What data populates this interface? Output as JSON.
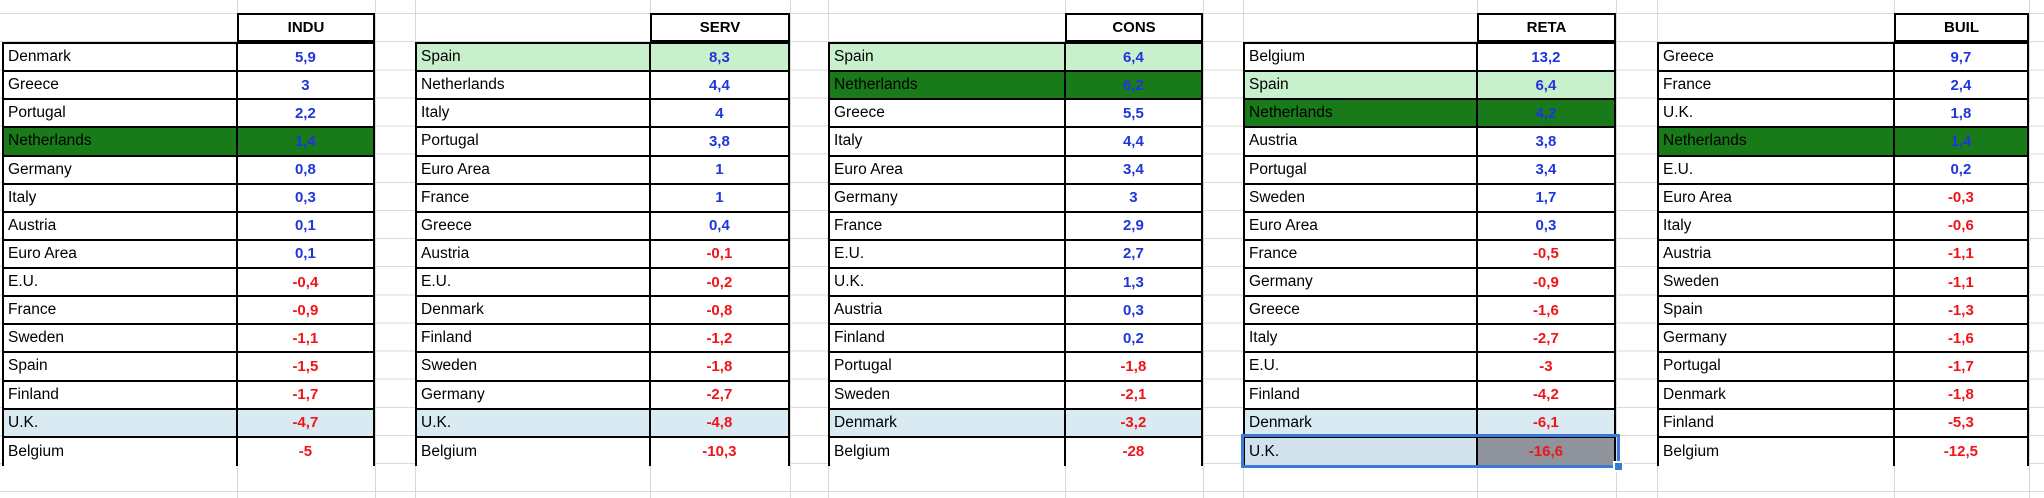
{
  "sheet": {
    "tables": [
      {
        "header": "INDU",
        "rows": [
          {
            "label": "Denmark",
            "value": "5,9",
            "highlight": "none"
          },
          {
            "label": "Greece",
            "value": "3",
            "highlight": "none"
          },
          {
            "label": "Portugal",
            "value": "2,2",
            "highlight": "none"
          },
          {
            "label": "Netherlands",
            "value": "1,4",
            "highlight": "dark-green"
          },
          {
            "label": "Germany",
            "value": "0,8",
            "highlight": "none"
          },
          {
            "label": "Italy",
            "value": "0,3",
            "highlight": "none"
          },
          {
            "label": "Austria",
            "value": "0,1",
            "highlight": "none"
          },
          {
            "label": "Euro Area",
            "value": "0,1",
            "highlight": "none"
          },
          {
            "label": "E.U.",
            "value": "-0,4",
            "highlight": "none"
          },
          {
            "label": "France",
            "value": "-0,9",
            "highlight": "none"
          },
          {
            "label": "Sweden",
            "value": "-1,1",
            "highlight": "none"
          },
          {
            "label": "Spain",
            "value": "-1,5",
            "highlight": "none"
          },
          {
            "label": "Finland",
            "value": "-1,7",
            "highlight": "none"
          },
          {
            "label": "U.K.",
            "value": "-4,7",
            "highlight": "light-blue"
          },
          {
            "label": "Belgium",
            "value": "-5",
            "highlight": "none"
          }
        ]
      },
      {
        "header": "SERV",
        "rows": [
          {
            "label": "Spain",
            "value": "8,3",
            "highlight": "light-green"
          },
          {
            "label": "Netherlands",
            "value": "4,4",
            "highlight": "none"
          },
          {
            "label": "Italy",
            "value": "4",
            "highlight": "none"
          },
          {
            "label": "Portugal",
            "value": "3,8",
            "highlight": "none"
          },
          {
            "label": "Euro Area",
            "value": "1",
            "highlight": "none"
          },
          {
            "label": "France",
            "value": "1",
            "highlight": "none"
          },
          {
            "label": "Greece",
            "value": "0,4",
            "highlight": "none"
          },
          {
            "label": "Austria",
            "value": "-0,1",
            "highlight": "none"
          },
          {
            "label": "E.U.",
            "value": "-0,2",
            "highlight": "none"
          },
          {
            "label": "Denmark",
            "value": "-0,8",
            "highlight": "none"
          },
          {
            "label": "Finland",
            "value": "-1,2",
            "highlight": "none"
          },
          {
            "label": "Sweden",
            "value": "-1,8",
            "highlight": "none"
          },
          {
            "label": "Germany",
            "value": "-2,7",
            "highlight": "none"
          },
          {
            "label": "U.K.",
            "value": "-4,8",
            "highlight": "light-blue"
          },
          {
            "label": "Belgium",
            "value": "-10,3",
            "highlight": "none"
          }
        ]
      },
      {
        "header": "CONS",
        "rows": [
          {
            "label": "Spain",
            "value": "6,4",
            "highlight": "light-green"
          },
          {
            "label": "Netherlands",
            "value": "6,2",
            "highlight": "dark-green"
          },
          {
            "label": "Greece",
            "value": "5,5",
            "highlight": "none"
          },
          {
            "label": "Italy",
            "value": "4,4",
            "highlight": "none"
          },
          {
            "label": "Euro Area",
            "value": "3,4",
            "highlight": "none"
          },
          {
            "label": "Germany",
            "value": "3",
            "highlight": "none"
          },
          {
            "label": "France",
            "value": "2,9",
            "highlight": "none"
          },
          {
            "label": "E.U.",
            "value": "2,7",
            "highlight": "none"
          },
          {
            "label": "U.K.",
            "value": "1,3",
            "highlight": "none"
          },
          {
            "label": "Austria",
            "value": "0,3",
            "highlight": "none"
          },
          {
            "label": "Finland",
            "value": "0,2",
            "highlight": "none"
          },
          {
            "label": "Portugal",
            "value": "-1,8",
            "highlight": "none"
          },
          {
            "label": "Sweden",
            "value": "-2,1",
            "highlight": "none"
          },
          {
            "label": "Denmark",
            "value": "-3,2",
            "highlight": "light-blue"
          },
          {
            "label": "Belgium",
            "value": "-28",
            "highlight": "none"
          }
        ]
      },
      {
        "header": "RETA",
        "rows": [
          {
            "label": "Belgium",
            "value": "13,2",
            "highlight": "none"
          },
          {
            "label": "Spain",
            "value": "6,4",
            "highlight": "light-green"
          },
          {
            "label": "Netherlands",
            "value": "4,2",
            "highlight": "dark-green"
          },
          {
            "label": "Austria",
            "value": "3,8",
            "highlight": "none"
          },
          {
            "label": "Portugal",
            "value": "3,4",
            "highlight": "none"
          },
          {
            "label": "Sweden",
            "value": "1,7",
            "highlight": "none"
          },
          {
            "label": "Euro Area",
            "value": "0,3",
            "highlight": "none"
          },
          {
            "label": "France",
            "value": "-0,5",
            "highlight": "none"
          },
          {
            "label": "Germany",
            "value": "-0,9",
            "highlight": "none"
          },
          {
            "label": "Greece",
            "value": "-1,6",
            "highlight": "none"
          },
          {
            "label": "Italy",
            "value": "-2,7",
            "highlight": "none"
          },
          {
            "label": "E.U.",
            "value": "-3",
            "highlight": "none"
          },
          {
            "label": "Finland",
            "value": "-4,2",
            "highlight": "none"
          },
          {
            "label": "Denmark",
            "value": "-6,1",
            "highlight": "light-blue"
          },
          {
            "label": "U.K.",
            "value": "-16,6",
            "highlight": "selected"
          }
        ]
      },
      {
        "header": "BUIL",
        "rows": [
          {
            "label": "Greece",
            "value": "9,7",
            "highlight": "none"
          },
          {
            "label": "France",
            "value": "2,4",
            "highlight": "none"
          },
          {
            "label": "U.K.",
            "value": "1,8",
            "highlight": "none"
          },
          {
            "label": "Netherlands",
            "value": "1,4",
            "highlight": "dark-green"
          },
          {
            "label": "E.U.",
            "value": "0,2",
            "highlight": "none"
          },
          {
            "label": "Euro Area",
            "value": "-0,3",
            "highlight": "none"
          },
          {
            "label": "Italy",
            "value": "-0,6",
            "highlight": "none"
          },
          {
            "label": "Austria",
            "value": "-1,1",
            "highlight": "none"
          },
          {
            "label": "Sweden",
            "value": "-1,1",
            "highlight": "none"
          },
          {
            "label": "Spain",
            "value": "-1,3",
            "highlight": "none"
          },
          {
            "label": "Germany",
            "value": "-1,6",
            "highlight": "none"
          },
          {
            "label": "Portugal",
            "value": "-1,7",
            "highlight": "none"
          },
          {
            "label": "Denmark",
            "value": "-1,8",
            "highlight": "none"
          },
          {
            "label": "Finland",
            "value": "-5,3",
            "highlight": "none"
          },
          {
            "label": "Belgium",
            "value": "-12,5",
            "highlight": "none"
          }
        ]
      }
    ],
    "selection": {
      "table": "RETA",
      "row_label": "U.K.",
      "value": "-16,6"
    }
  },
  "colors": {
    "value_positive": "#1f36da",
    "value_negative": "#f01418",
    "highlight_dark_green": "#187a18",
    "highlight_light_green": "#c9f0cd",
    "highlight_light_blue": "#d9eaf2",
    "selected_label_bg": "#d2e2ec",
    "selected_value_bg": "#8e939c",
    "selection_border": "#3b7ad6",
    "gridline": "#d9d9d9",
    "table_border": "#000000"
  }
}
